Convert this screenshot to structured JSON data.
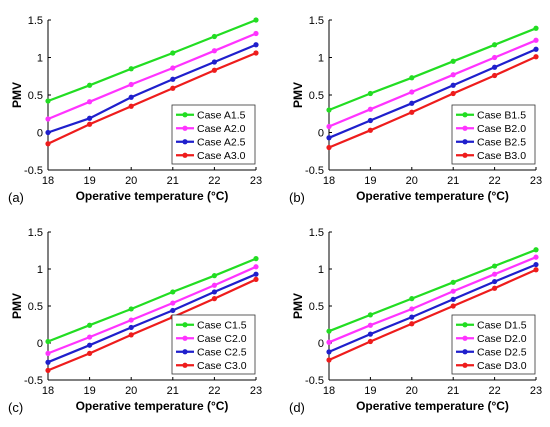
{
  "chart_data": [
    {
      "type": "line",
      "panel_label": "(a)",
      "xlabel": "Operative temperature (°C)",
      "ylabel": "PMV",
      "x": [
        18,
        19,
        20,
        21,
        22,
        23
      ],
      "xlim": [
        18,
        23
      ],
      "ylim": [
        -0.5,
        1.5
      ],
      "xticks": [
        "18",
        "19",
        "20",
        "21",
        "22",
        "23"
      ],
      "yticks": [
        "-0.5",
        "0",
        "0.5",
        "1",
        "1.5"
      ],
      "legend_position": "bottom-right",
      "grid": false,
      "series": [
        {
          "name": "Case A1.5",
          "color": "#22dd22",
          "values": [
            0.42,
            0.63,
            0.85,
            1.06,
            1.28,
            1.5
          ]
        },
        {
          "name": "Case A2.0",
          "color": "#ff33ff",
          "values": [
            0.18,
            0.41,
            0.64,
            0.86,
            1.09,
            1.32
          ]
        },
        {
          "name": "Case A2.5",
          "color": "#1f1fcc",
          "values": [
            0.0,
            0.19,
            0.47,
            0.71,
            0.94,
            1.17
          ]
        },
        {
          "name": "Case A3.0",
          "color": "#ee1c1c",
          "values": [
            -0.15,
            0.11,
            0.35,
            0.59,
            0.83,
            1.06
          ]
        }
      ]
    },
    {
      "type": "line",
      "panel_label": "(b)",
      "xlabel": "Operative temperature (°C)",
      "ylabel": "PMV",
      "x": [
        18,
        19,
        20,
        21,
        22,
        23
      ],
      "xlim": [
        18,
        23
      ],
      "ylim": [
        -0.5,
        1.5
      ],
      "xticks": [
        "18",
        "19",
        "20",
        "21",
        "22",
        "23"
      ],
      "yticks": [
        "-0.5",
        "0",
        "0.5",
        "1",
        "1.5"
      ],
      "legend_position": "bottom-right",
      "grid": false,
      "series": [
        {
          "name": "Case B1.5",
          "color": "#22dd22",
          "values": [
            0.3,
            0.52,
            0.73,
            0.95,
            1.17,
            1.39
          ]
        },
        {
          "name": "Case B2.0",
          "color": "#ff33ff",
          "values": [
            0.08,
            0.31,
            0.54,
            0.77,
            1.0,
            1.23
          ]
        },
        {
          "name": "Case B2.5",
          "color": "#1f1fcc",
          "values": [
            -0.07,
            0.16,
            0.39,
            0.63,
            0.87,
            1.11
          ]
        },
        {
          "name": "Case B3.0",
          "color": "#ee1c1c",
          "values": [
            -0.2,
            0.03,
            0.27,
            0.52,
            0.76,
            1.01
          ]
        }
      ]
    },
    {
      "type": "line",
      "panel_label": "(c)",
      "xlabel": "Operative temperature (°C)",
      "ylabel": "PMV",
      "x": [
        18,
        19,
        20,
        21,
        22,
        23
      ],
      "xlim": [
        18,
        23
      ],
      "ylim": [
        -0.5,
        1.5
      ],
      "xticks": [
        "18",
        "19",
        "20",
        "21",
        "22",
        "23"
      ],
      "yticks": [
        "-0.5",
        "0",
        "0.5",
        "1",
        "1.5"
      ],
      "legend_position": "bottom-right",
      "grid": false,
      "series": [
        {
          "name": "Case C1.5",
          "color": "#22dd22",
          "values": [
            0.02,
            0.24,
            0.46,
            0.69,
            0.91,
            1.14
          ]
        },
        {
          "name": "Case C2.0",
          "color": "#ff33ff",
          "values": [
            -0.14,
            0.08,
            0.31,
            0.54,
            0.78,
            1.03
          ]
        },
        {
          "name": "Case C2.5",
          "color": "#1f1fcc",
          "values": [
            -0.26,
            -0.03,
            0.21,
            0.44,
            0.69,
            0.93
          ]
        },
        {
          "name": "Case C3.0",
          "color": "#ee1c1c",
          "values": [
            -0.37,
            -0.14,
            0.11,
            0.35,
            0.6,
            0.86
          ]
        }
      ]
    },
    {
      "type": "line",
      "panel_label": "(d)",
      "xlabel": "Operative temperature (°C)",
      "ylabel": "PMV",
      "x": [
        18,
        19,
        20,
        21,
        22,
        23
      ],
      "xlim": [
        18,
        23
      ],
      "ylim": [
        -0.5,
        1.5
      ],
      "xticks": [
        "18",
        "19",
        "20",
        "21",
        "22",
        "23"
      ],
      "yticks": [
        "-0.5",
        "0",
        "0.5",
        "1",
        "1.5"
      ],
      "legend_position": "bottom-right",
      "grid": false,
      "series": [
        {
          "name": "Case D1.5",
          "color": "#22dd22",
          "values": [
            0.16,
            0.38,
            0.6,
            0.82,
            1.04,
            1.26
          ]
        },
        {
          "name": "Case D2.0",
          "color": "#ff33ff",
          "values": [
            0.01,
            0.24,
            0.46,
            0.7,
            0.93,
            1.16
          ]
        },
        {
          "name": "Case D2.5",
          "color": "#1f1fcc",
          "values": [
            -0.12,
            0.12,
            0.35,
            0.59,
            0.83,
            1.06
          ]
        },
        {
          "name": "Case D3.0",
          "color": "#ee1c1c",
          "values": [
            -0.23,
            0.02,
            0.26,
            0.5,
            0.74,
            0.99
          ]
        }
      ]
    }
  ]
}
